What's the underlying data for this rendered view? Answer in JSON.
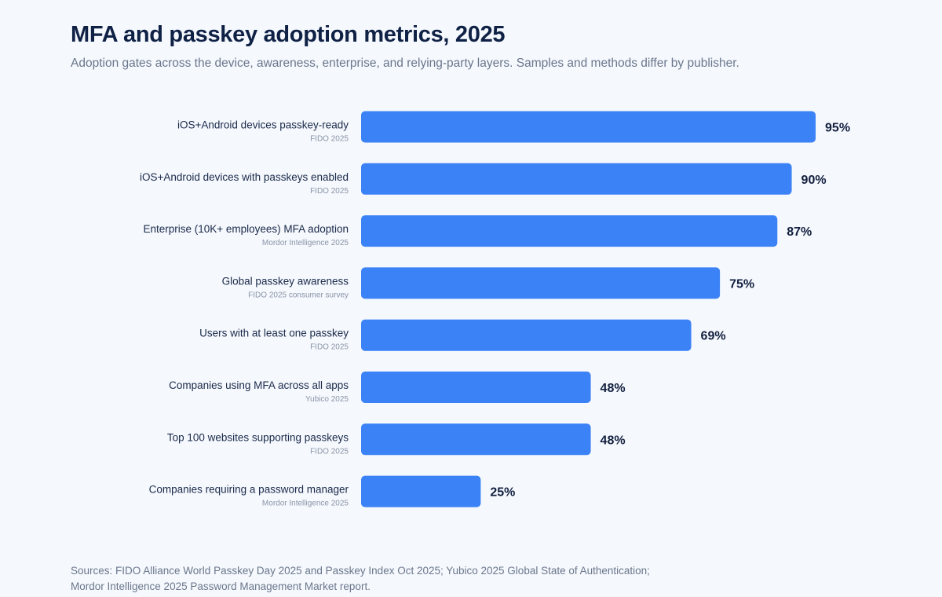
{
  "header": {
    "title": "MFA and passkey adoption metrics, 2025",
    "subtitle": "Adoption gates across the device, awareness, enterprise, and relying-party layers. Samples and methods differ by publisher."
  },
  "footer": {
    "line1": "Sources: FIDO Alliance World Passkey Day 2025 and Passkey Index Oct 2025; Yubico 2025 Global State of Authentication;",
    "line2": "Mordor Intelligence 2025 Password Management Market report."
  },
  "colors": {
    "bar": "#3b82f6",
    "title": "#0f2145",
    "muted": "#6b778c",
    "background": "#f5f8fd"
  },
  "chart_data": {
    "type": "bar",
    "orientation": "horizontal",
    "title": "MFA and passkey adoption metrics, 2025",
    "xlabel": "",
    "ylabel": "",
    "xlim": [
      0,
      100
    ],
    "grid": false,
    "value_suffix": "%",
    "categories": [
      "iOS+Android devices passkey-ready",
      "iOS+Android devices with passkeys enabled",
      "Enterprise (10K+ employees) MFA adoption",
      "Global passkey awareness",
      "Users with at least one passkey",
      "Companies using MFA across all apps",
      "Top 100 websites supporting passkeys",
      "Companies requiring a password manager"
    ],
    "sources": [
      "FIDO 2025",
      "FIDO 2025",
      "Mordor Intelligence 2025",
      "FIDO 2025 consumer survey",
      "FIDO 2025",
      "Yubico 2025",
      "FIDO 2025",
      "Mordor Intelligence 2025"
    ],
    "values": [
      95,
      90,
      87,
      75,
      69,
      48,
      48,
      25
    ],
    "value_labels": [
      "95%",
      "90%",
      "87%",
      "75%",
      "69%",
      "48%",
      "48%",
      "25%"
    ]
  }
}
